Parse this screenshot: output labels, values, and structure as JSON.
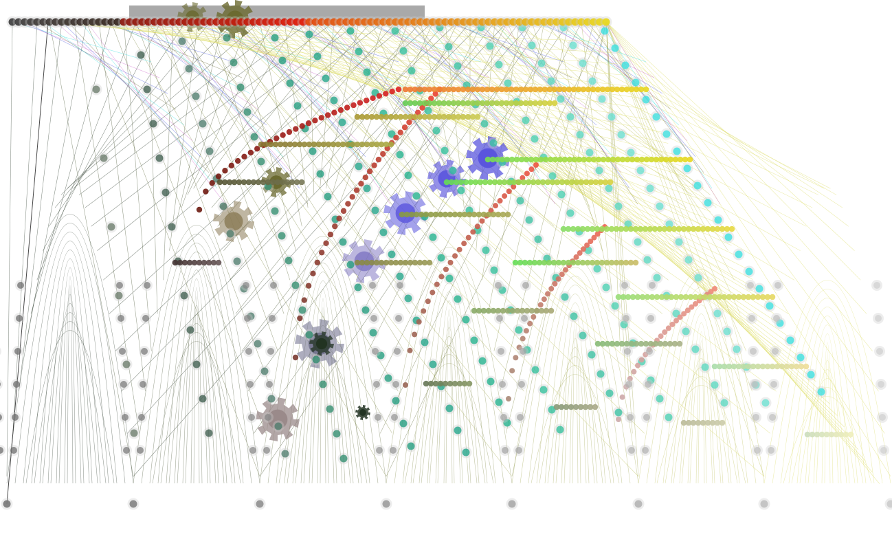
{
  "colors": {
    "background": "#ffffff",
    "top_bar": "#a9a9a9",
    "dark_edge": "#2b3a2b",
    "olive_edge": "#6b6a3a",
    "cyan_edge": "#33dddd",
    "purple_edge": "#cc66cc",
    "blue_edge": "#4455dd",
    "yellow_edge": "#dddd66",
    "top_red": "#e21b0a",
    "top_yellow": "#e8d820",
    "top_dark": "#3a2a22",
    "teal_node": "#1aa385",
    "cyan_node": "#33e0e0",
    "green_node": "#77dd55",
    "gray_node": "#888888",
    "blue_gear": "#5a55dd",
    "olive_gear": "#6b6a30",
    "gray_gear": "#9a8a8a",
    "dark_gear": "#223322"
  },
  "legend": {}
}
